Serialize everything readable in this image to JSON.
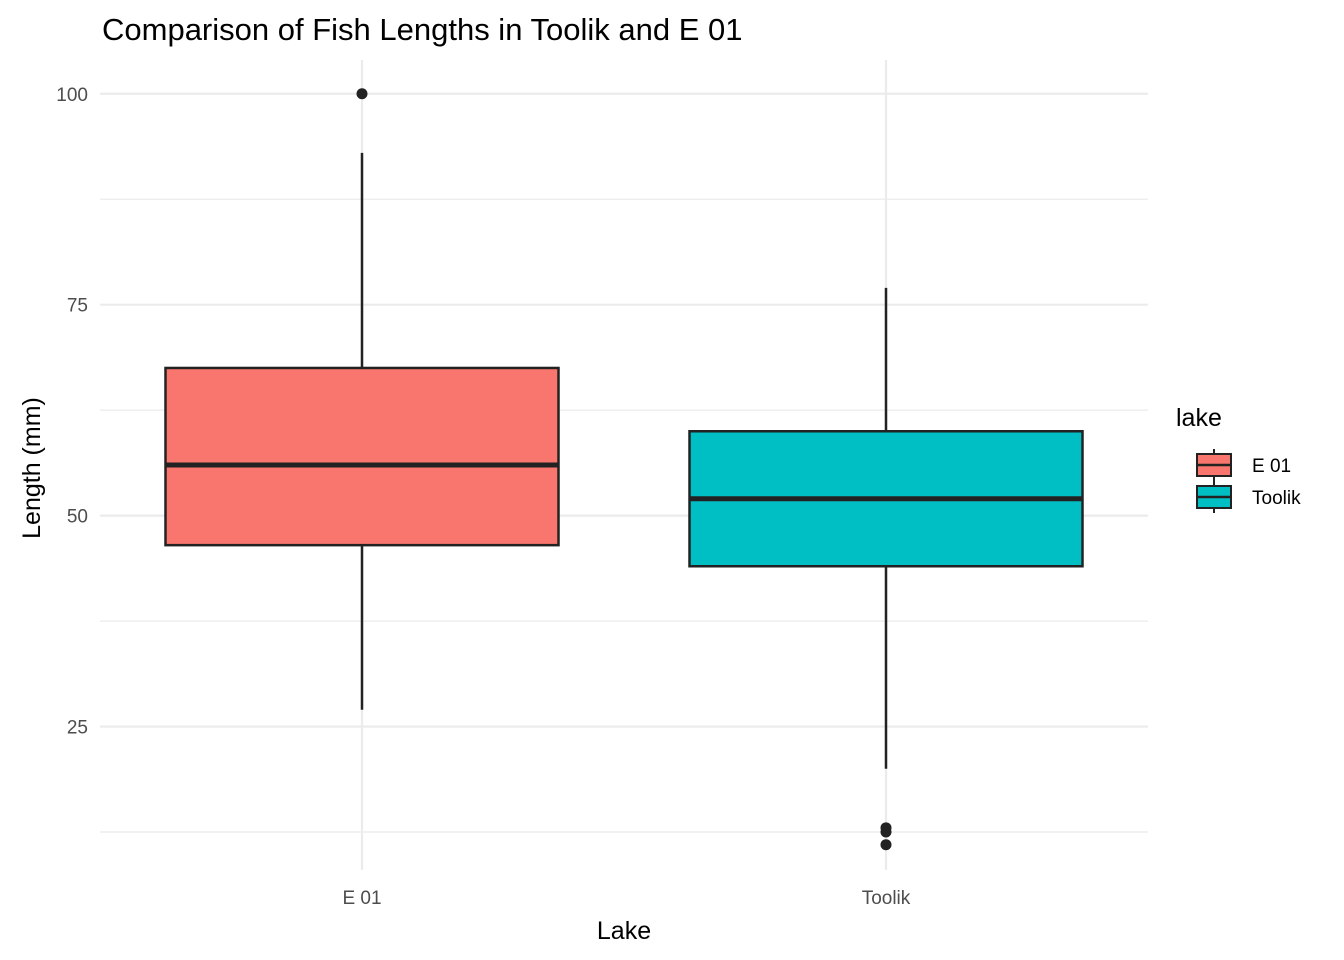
{
  "chart_data": {
    "type": "boxplot",
    "title": "Comparison of Fish Lengths in Toolik and E 01",
    "xlabel": "Lake",
    "ylabel": "Length (mm)",
    "categories": [
      "E 01",
      "Toolik"
    ],
    "ylim": [
      8,
      104
    ],
    "yticks": [
      25,
      50,
      75,
      100
    ],
    "grid": true,
    "legend": {
      "title": "lake",
      "position": "right",
      "entries": [
        {
          "label": "E 01",
          "color": "#F8766D"
        },
        {
          "label": "Toolik",
          "color": "#00BFC4"
        }
      ]
    },
    "boxes": [
      {
        "category": "E 01",
        "color": "#F8766D",
        "whisker_low": 27,
        "q1": 46.5,
        "median": 56,
        "q3": 67.5,
        "whisker_high": 93,
        "outliers": [
          100
        ]
      },
      {
        "category": "Toolik",
        "color": "#00BFC4",
        "whisker_low": 20,
        "q1": 44,
        "median": 52,
        "q3": 60,
        "whisker_high": 77,
        "outliers": [
          13,
          12.5,
          11
        ]
      }
    ]
  }
}
